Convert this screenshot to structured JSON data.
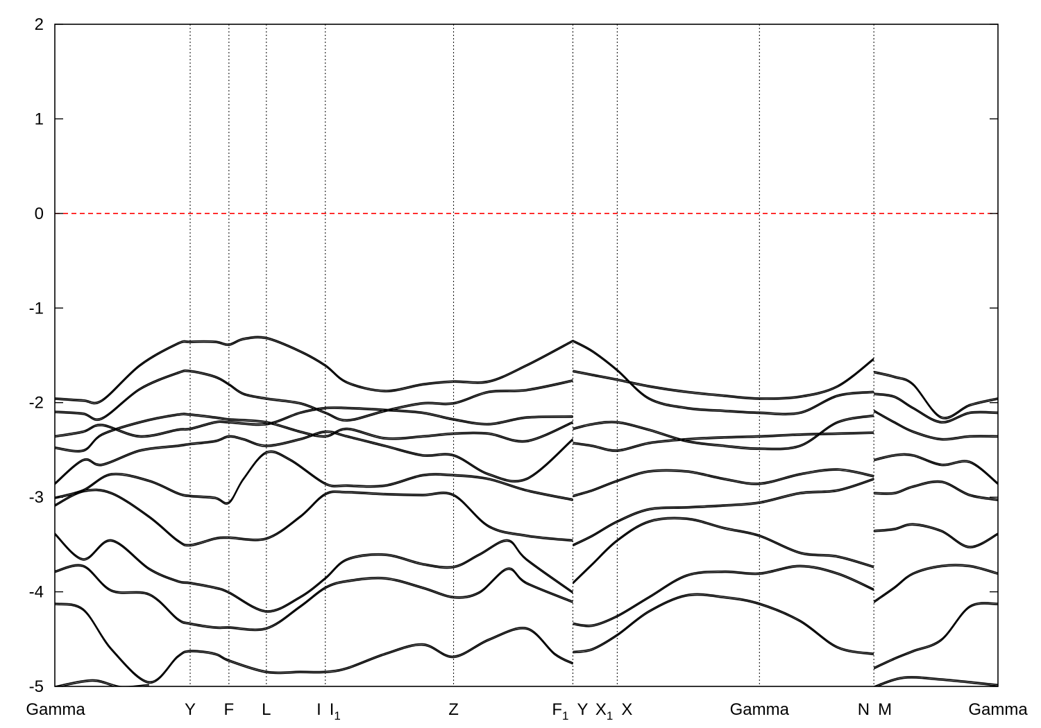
{
  "chart_data": {
    "type": "line",
    "title": "",
    "xlabel": "",
    "ylabel": "",
    "ylim": [
      -5,
      2
    ],
    "yticks": [
      2,
      1,
      0,
      -1,
      -2,
      -3,
      -4,
      -5
    ],
    "xlim": [
      0,
      1
    ],
    "high_symmetry_points": [
      {
        "label": "Gamma",
        "x": 0.0
      },
      {
        "label": "Y",
        "x": 0.1435
      },
      {
        "label": "F",
        "x": 0.1846
      },
      {
        "label": "L",
        "x": 0.2243
      },
      {
        "label": "I",
        "x": 0.2868
      },
      {
        "label": "I1",
        "x": 0.2868
      },
      {
        "label": "Z",
        "x": 0.4228
      },
      {
        "label": "F1",
        "x": 0.5493
      },
      {
        "label": "Y",
        "x": 0.5493
      },
      {
        "label": "X1",
        "x": 0.5963
      },
      {
        "label": "X",
        "x": 0.5963
      },
      {
        "label": "Gamma",
        "x": 0.7471
      },
      {
        "label": "N",
        "x": 0.8684
      },
      {
        "label": "M",
        "x": 0.8684
      },
      {
        "label": "Gamma",
        "x": 1.0
      }
    ],
    "fermi_level": 0,
    "fermi_color": "#ff0000",
    "line_color": "#000000",
    "grid": false,
    "series": [
      {
        "x": [
          0.0,
          0.03,
          0.05,
          0.09,
          0.13,
          0.1435,
          0.17,
          0.1846,
          0.2,
          0.2243,
          0.26,
          0.2868,
          0.31,
          0.35,
          0.39,
          0.4228,
          0.46,
          0.5,
          0.5493
        ],
        "values": [
          -1.95,
          -1.97,
          -1.97,
          -1.6,
          -1.37,
          -1.35,
          -1.35,
          -1.38,
          -1.32,
          -1.31,
          -1.45,
          -1.6,
          -1.78,
          -1.87,
          -1.8,
          -1.77,
          -1.77,
          -1.6,
          -1.34
        ]
      },
      {
        "x": [
          0.0,
          0.03,
          0.05,
          0.09,
          0.13,
          0.1435,
          0.17,
          0.1846,
          0.2,
          0.2243,
          0.26,
          0.2868,
          0.31,
          0.35,
          0.39,
          0.4228,
          0.46,
          0.5,
          0.5493
        ],
        "values": [
          -2.09,
          -2.11,
          -2.16,
          -1.85,
          -1.68,
          -1.66,
          -1.72,
          -1.8,
          -1.9,
          -1.95,
          -2.0,
          -2.1,
          -2.18,
          -2.08,
          -2.0,
          -2.0,
          -1.88,
          -1.86,
          -1.76
        ]
      },
      {
        "x": [
          0.0,
          0.03,
          0.05,
          0.09,
          0.13,
          0.1435,
          0.17,
          0.1846,
          0.2243,
          0.26,
          0.2868,
          0.31,
          0.35,
          0.39,
          0.4228,
          0.46,
          0.5,
          0.5493
        ],
        "values": [
          -2.35,
          -2.3,
          -2.23,
          -2.35,
          -2.28,
          -2.27,
          -2.2,
          -2.2,
          -2.22,
          -2.1,
          -2.05,
          -2.05,
          -2.07,
          -2.1,
          -2.17,
          -2.22,
          -2.15,
          -2.14
        ]
      },
      {
        "x": [
          0.0,
          0.03,
          0.05,
          0.09,
          0.13,
          0.1435,
          0.17,
          0.1846,
          0.2243,
          0.26,
          0.2868,
          0.31,
          0.35,
          0.39,
          0.4228,
          0.46,
          0.5,
          0.5493
        ],
        "values": [
          -2.47,
          -2.5,
          -2.33,
          -2.2,
          -2.12,
          -2.12,
          -2.15,
          -2.17,
          -2.2,
          -2.3,
          -2.35,
          -2.27,
          -2.37,
          -2.35,
          -2.32,
          -2.32,
          -2.4,
          -2.2
        ]
      },
      {
        "x": [
          0.0,
          0.03,
          0.05,
          0.09,
          0.13,
          0.1435,
          0.17,
          0.1846,
          0.2,
          0.2243,
          0.26,
          0.2868,
          0.31,
          0.35,
          0.39,
          0.4228,
          0.46,
          0.5,
          0.5493
        ],
        "values": [
          -2.85,
          -2.6,
          -2.65,
          -2.5,
          -2.45,
          -2.43,
          -2.4,
          -2.35,
          -2.38,
          -2.45,
          -2.38,
          -2.3,
          -2.35,
          -2.45,
          -2.55,
          -2.55,
          -2.75,
          -2.8,
          -2.38
        ]
      },
      {
        "x": [
          0.0,
          0.03,
          0.06,
          0.1,
          0.13,
          0.1435,
          0.17,
          0.1846,
          0.2,
          0.2243,
          0.25,
          0.2868,
          0.31,
          0.35,
          0.39,
          0.4228,
          0.46,
          0.5,
          0.5493
        ],
        "values": [
          -3.0,
          -2.92,
          -2.75,
          -2.82,
          -2.95,
          -2.98,
          -3.0,
          -3.05,
          -2.8,
          -2.52,
          -2.6,
          -2.85,
          -2.87,
          -2.87,
          -2.76,
          -2.76,
          -2.8,
          -2.92,
          -3.02
        ]
      },
      {
        "x": [
          0.0,
          0.03,
          0.06,
          0.1,
          0.13,
          0.1435,
          0.17,
          0.1846,
          0.2243,
          0.26,
          0.2868,
          0.31,
          0.35,
          0.39,
          0.4228,
          0.46,
          0.5,
          0.5493
        ],
        "values": [
          -3.08,
          -2.93,
          -2.95,
          -3.2,
          -3.45,
          -3.5,
          -3.43,
          -3.42,
          -3.43,
          -3.2,
          -2.96,
          -2.94,
          -2.96,
          -2.97,
          -2.97,
          -3.3,
          -3.4,
          -3.45
        ]
      },
      {
        "x": [
          0.0,
          0.03,
          0.06,
          0.1,
          0.13,
          0.1435,
          0.17,
          0.1846,
          0.2243,
          0.26,
          0.2868,
          0.31,
          0.35,
          0.39,
          0.4228,
          0.45,
          0.48,
          0.5,
          0.5493
        ],
        "values": [
          -3.38,
          -3.65,
          -3.45,
          -3.75,
          -3.88,
          -3.9,
          -3.95,
          -4.0,
          -4.2,
          -4.05,
          -3.85,
          -3.65,
          -3.6,
          -3.7,
          -3.73,
          -3.6,
          -3.45,
          -3.65,
          -4.0
        ]
      },
      {
        "x": [
          0.0,
          0.03,
          0.06,
          0.1,
          0.13,
          0.1435,
          0.17,
          0.1846,
          0.2243,
          0.26,
          0.2868,
          0.31,
          0.35,
          0.39,
          0.4228,
          0.45,
          0.48,
          0.5,
          0.5493
        ],
        "values": [
          -3.78,
          -3.72,
          -3.98,
          -4.02,
          -4.28,
          -4.33,
          -4.37,
          -4.37,
          -4.38,
          -4.15,
          -3.95,
          -3.88,
          -3.85,
          -3.95,
          -4.05,
          -4.0,
          -3.75,
          -3.9,
          -4.1
        ]
      },
      {
        "x": [
          0.0,
          0.03,
          0.06,
          0.1,
          0.13,
          0.1435,
          0.17,
          0.1846,
          0.2243,
          0.26,
          0.2868,
          0.31,
          0.35,
          0.39,
          0.4228,
          0.46,
          0.5,
          0.53,
          0.5493
        ],
        "values": [
          -4.12,
          -4.18,
          -4.6,
          -4.95,
          -4.68,
          -4.62,
          -4.65,
          -4.72,
          -4.84,
          -4.84,
          -4.84,
          -4.8,
          -4.65,
          -4.55,
          -4.68,
          -4.5,
          -4.38,
          -4.65,
          -4.75
        ]
      },
      {
        "x": [
          0.0,
          0.04,
          0.07,
          0.1
        ],
        "values": [
          -5.0,
          -4.93,
          -5.0,
          -4.98
        ]
      },
      {
        "x": [
          0.5493,
          0.57,
          0.5963,
          0.63,
          0.67,
          0.71,
          0.7471,
          0.79,
          0.83,
          0.8684
        ],
        "values": [
          -1.66,
          -1.7,
          -1.75,
          -1.82,
          -1.88,
          -1.92,
          -1.95,
          -1.93,
          -1.82,
          -1.53
        ]
      },
      {
        "x": [
          0.5493,
          0.57,
          0.5963,
          0.63,
          0.67,
          0.71,
          0.7471,
          0.79,
          0.83,
          0.8684
        ],
        "values": [
          -1.34,
          -1.45,
          -1.65,
          -1.95,
          -2.05,
          -2.08,
          -2.1,
          -2.1,
          -1.92,
          -1.88
        ]
      },
      {
        "x": [
          0.5493,
          0.57,
          0.5963,
          0.63,
          0.67,
          0.71,
          0.7471,
          0.79,
          0.83,
          0.8684
        ],
        "values": [
          -2.27,
          -2.22,
          -2.2,
          -2.28,
          -2.4,
          -2.45,
          -2.48,
          -2.45,
          -2.2,
          -2.13
        ]
      },
      {
        "x": [
          0.5493,
          0.57,
          0.5963,
          0.63,
          0.67,
          0.71,
          0.7471,
          0.79,
          0.83,
          0.8684
        ],
        "values": [
          -2.42,
          -2.45,
          -2.5,
          -2.42,
          -2.38,
          -2.36,
          -2.35,
          -2.33,
          -2.32,
          -2.31
        ]
      },
      {
        "x": [
          0.5493,
          0.57,
          0.5963,
          0.63,
          0.67,
          0.71,
          0.7471,
          0.79,
          0.83,
          0.8684
        ],
        "values": [
          -2.98,
          -2.92,
          -2.82,
          -2.72,
          -2.72,
          -2.8,
          -2.85,
          -2.75,
          -2.7,
          -2.77
        ]
      },
      {
        "x": [
          0.5493,
          0.57,
          0.5963,
          0.63,
          0.67,
          0.71,
          0.7471,
          0.79,
          0.83,
          0.8684
        ],
        "values": [
          -3.5,
          -3.4,
          -3.25,
          -3.12,
          -3.1,
          -3.08,
          -3.05,
          -2.95,
          -2.92,
          -2.8
        ]
      },
      {
        "x": [
          0.5493,
          0.57,
          0.5963,
          0.63,
          0.67,
          0.71,
          0.7471,
          0.79,
          0.83,
          0.8684
        ],
        "values": [
          -3.9,
          -3.7,
          -3.45,
          -3.25,
          -3.22,
          -3.32,
          -3.4,
          -3.58,
          -3.62,
          -3.73
        ]
      },
      {
        "x": [
          0.5493,
          0.57,
          0.5963,
          0.63,
          0.67,
          0.71,
          0.7471,
          0.79,
          0.83,
          0.8684
        ],
        "values": [
          -4.33,
          -4.35,
          -4.25,
          -4.05,
          -3.82,
          -3.78,
          -3.8,
          -3.72,
          -3.8,
          -3.97
        ]
      },
      {
        "x": [
          0.5493,
          0.57,
          0.5963,
          0.63,
          0.67,
          0.71,
          0.7471,
          0.79,
          0.83,
          0.8684
        ],
        "values": [
          -4.63,
          -4.6,
          -4.45,
          -4.2,
          -4.03,
          -4.05,
          -4.12,
          -4.3,
          -4.58,
          -4.65
        ]
      },
      {
        "x": [
          0.8684,
          0.89,
          0.91,
          0.94,
          0.97,
          1.0
        ],
        "values": [
          -1.67,
          -1.72,
          -1.8,
          -2.15,
          -2.02,
          -1.95
        ]
      },
      {
        "x": [
          0.8684,
          0.89,
          0.91,
          0.94,
          0.97,
          1.0
        ],
        "values": [
          -1.9,
          -1.93,
          -2.05,
          -2.2,
          -2.1,
          -2.1
        ]
      },
      {
        "x": [
          0.8684,
          0.89,
          0.91,
          0.94,
          0.97,
          1.0
        ],
        "values": [
          -2.08,
          -2.2,
          -2.3,
          -2.38,
          -2.35,
          -2.35
        ]
      },
      {
        "x": [
          0.8684,
          0.89,
          0.91,
          0.94,
          0.97,
          1.0
        ],
        "values": [
          -2.6,
          -2.55,
          -2.55,
          -2.65,
          -2.62,
          -2.85
        ]
      },
      {
        "x": [
          0.8684,
          0.89,
          0.91,
          0.94,
          0.97,
          1.0
        ],
        "values": [
          -2.95,
          -2.95,
          -2.88,
          -2.83,
          -2.97,
          -3.02
        ]
      },
      {
        "x": [
          0.8684,
          0.89,
          0.91,
          0.94,
          0.97,
          1.0
        ],
        "values": [
          -3.35,
          -3.33,
          -3.28,
          -3.35,
          -3.52,
          -3.38
        ]
      },
      {
        "x": [
          0.8684,
          0.89,
          0.91,
          0.94,
          0.97,
          1.0
        ],
        "values": [
          -4.1,
          -3.95,
          -3.8,
          -3.72,
          -3.72,
          -3.8
        ]
      },
      {
        "x": [
          0.8684,
          0.89,
          0.91,
          0.94,
          0.97,
          1.0
        ],
        "values": [
          -4.8,
          -4.7,
          -4.62,
          -4.5,
          -4.15,
          -4.12
        ]
      },
      {
        "x": [
          0.8684,
          0.9,
          0.94,
          1.0
        ],
        "values": [
          -5.0,
          -4.9,
          -4.92,
          -4.98
        ]
      }
    ]
  }
}
